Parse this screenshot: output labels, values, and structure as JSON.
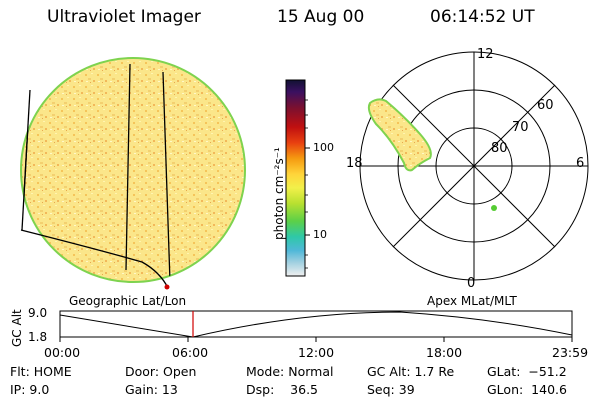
{
  "header": {
    "instrument": "Ultraviolet Imager",
    "date": "15 Aug 00",
    "time": "06:14:52 UT"
  },
  "colorbar": {
    "unit_label": "photon cm⁻²s⁻¹",
    "ticks": [
      "100",
      "10"
    ],
    "colors": [
      "#111133",
      "#3a1060",
      "#7a1030",
      "#c01010",
      "#e84010",
      "#f59a10",
      "#ffd43a",
      "#f2f04a",
      "#b8e030",
      "#5cd048",
      "#2ec8a8",
      "#50b8d8",
      "#a0d0e0",
      "#f0f0f0"
    ]
  },
  "polar_plot": {
    "lt_labels": [
      "12",
      "18",
      "6",
      "0"
    ],
    "lat_labels": [
      "60",
      "70",
      "80"
    ]
  },
  "panels": {
    "left_title": "Geographic Lat/Lon",
    "right_title": "Apex MLat/MLT"
  },
  "altitude_plot": {
    "ylabel": "GC Alt",
    "yticks": [
      "9.0",
      "1.8"
    ],
    "xticks": [
      "00:00",
      "06:00",
      "12:00",
      "18:00",
      "23:59"
    ]
  },
  "info": {
    "flt": "Flt: HOME",
    "ip": "IP:  9.0",
    "door": "Door: Open",
    "gain": "Gain: 13",
    "mode": "Mode: Normal",
    "dsp": "Dsp:    36.5",
    "gc_alt": "GC Alt: 1.7 Re",
    "seq": "Seq: 39",
    "glat": "GLat:  −51.2",
    "glon": "GLon:  140.6"
  },
  "style": {
    "disk_fill": "#fbe88a",
    "disk_edge": "#7ed34f",
    "oval_fill": "#fbe88a",
    "marker_red": "#d00000",
    "marker_green": "#55cc33"
  }
}
